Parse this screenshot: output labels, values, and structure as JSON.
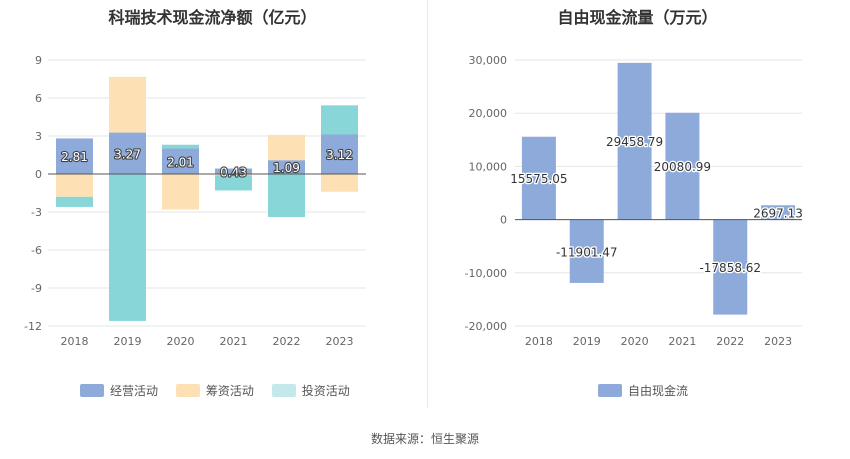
{
  "source_text": "数据来源：恒生聚源",
  "chart_data": [
    {
      "type": "bar",
      "stacked": true,
      "title": "科瑞技术现金流净额（亿元）",
      "categories": [
        "2018",
        "2019",
        "2020",
        "2021",
        "2022",
        "2023"
      ],
      "ylim": [
        -12,
        9
      ],
      "yticks": [
        9,
        6,
        3,
        0,
        -3,
        -6,
        -9,
        -12
      ],
      "grid": true,
      "legend_position": "bottom",
      "series": [
        {
          "name": "经营活动",
          "color": "#8eaadb",
          "values": [
            2.81,
            3.27,
            2.01,
            0.43,
            1.09,
            3.12
          ],
          "labeled": true
        },
        {
          "name": "筹资活动",
          "color": "#fde0b4",
          "values": [
            -1.8,
            4.4,
            -2.8,
            -0.1,
            2.0,
            -1.4
          ],
          "labeled": false
        },
        {
          "name": "投资活动",
          "color": "#89d6d9",
          "values": [
            -0.8,
            -11.6,
            0.3,
            -1.2,
            -3.4,
            2.3
          ],
          "labeled": false
        }
      ],
      "data_labels": [
        "2.81",
        "3.27",
        "2.01",
        "0.43",
        "1.09",
        "3.12"
      ]
    },
    {
      "type": "bar",
      "title": "自由现金流量（万元）",
      "categories": [
        "2018",
        "2019",
        "2020",
        "2021",
        "2022",
        "2023"
      ],
      "ylim": [
        -20000,
        30000
      ],
      "yticks": [
        30000,
        20000,
        10000,
        0,
        -10000,
        -20000
      ],
      "ytick_labels": [
        "30,000",
        "20,000",
        "10,000",
        "0",
        "-10,000",
        "-20,000"
      ],
      "grid": true,
      "legend_position": "bottom",
      "series": [
        {
          "name": "自由现金流",
          "color": "#8eaadb",
          "values": [
            15575.05,
            -11901.47,
            29458.79,
            20080.99,
            -17858.62,
            2697.13
          ]
        }
      ],
      "data_labels": [
        "15575.05",
        "-11901.47",
        "29458.79",
        "20080.99",
        "-17858.62",
        "2697.13"
      ]
    }
  ]
}
